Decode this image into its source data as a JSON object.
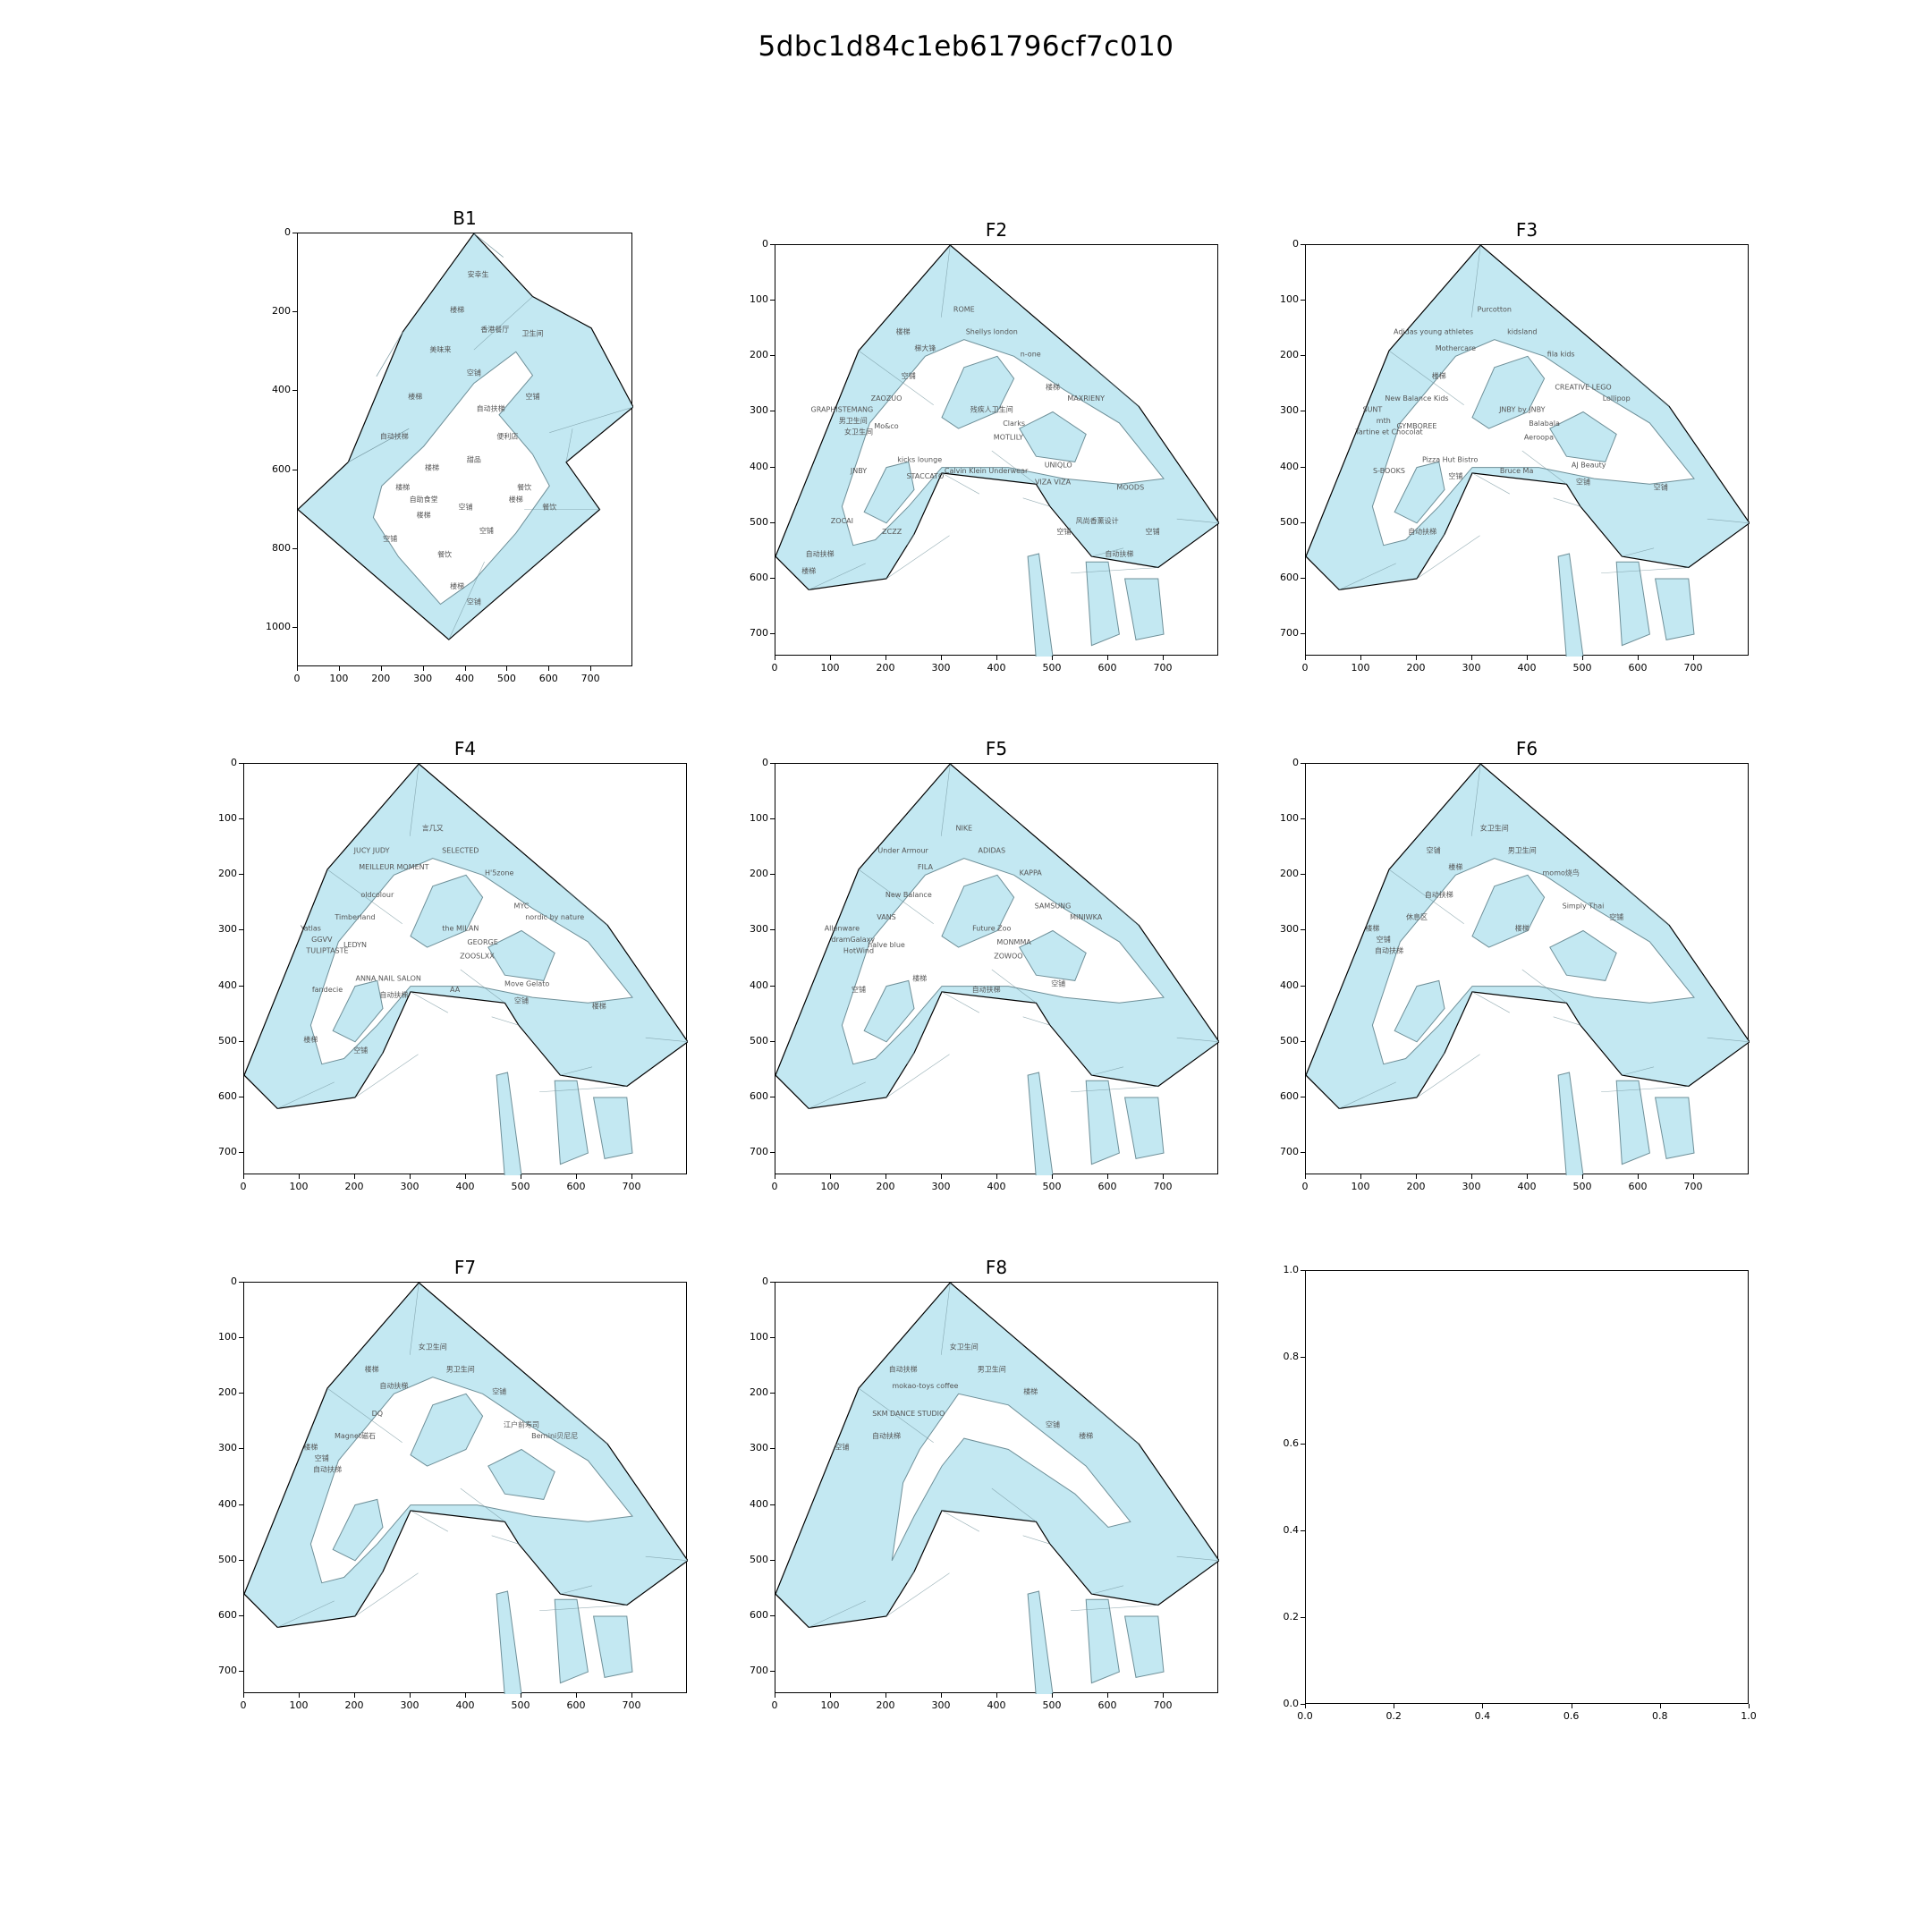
{
  "figure": {
    "title": "5dbc1d84c1eb61796cf7c010"
  },
  "colors": {
    "fill": "#c3e8f2",
    "edge": "#6e8f98",
    "outline": "#000000",
    "label": "#555555"
  },
  "panels": [
    {
      "name": "B1",
      "xticks": [
        "0",
        "100",
        "200",
        "300",
        "400",
        "500",
        "600",
        "700"
      ],
      "yticks": [
        "0",
        "200",
        "400",
        "600",
        "800",
        "1000"
      ],
      "labels": [
        "安幸生",
        "楼梯",
        "美味来",
        "香港餐厅",
        "卫生间",
        "空铺",
        "楼梯",
        "自动扶梯",
        "楼梯",
        "甜品",
        "便利店",
        "餐饮",
        "空铺",
        "楼梯",
        "空铺",
        "餐饮",
        "空铺",
        "楼梯",
        "楼梯",
        "餐饮",
        "自动扶梯",
        "空铺",
        "自助食堂",
        "楼梯",
        "空铺"
      ]
    },
    {
      "name": "F2",
      "xticks": [
        "0",
        "100",
        "200",
        "300",
        "400",
        "500",
        "600",
        "700"
      ],
      "yticks": [
        "0",
        "100",
        "200",
        "300",
        "400",
        "500",
        "600",
        "700"
      ],
      "labels": [
        "ROME",
        "Shellys london",
        "n-one",
        "楼梯",
        "梯大锋",
        "空铺",
        "楼梯",
        "MAXRIENY",
        "ZAOZUO",
        "GRAPHISTEMANG",
        "男卫生间",
        "女卫生间",
        "残疾人卫生间",
        "Mo&co",
        "Clarks",
        "MOTLILY",
        "JNBY",
        "kicks lounge",
        "Calvin Klein Underwear",
        "UNIQLO",
        "VIZA VIZA",
        "MOODS",
        "STACCATO",
        "ZCZZ",
        "ZOCAI",
        "自动扶梯",
        "楼梯",
        "空铺",
        "风尚香薰设计",
        "空铺",
        "自动扶梯"
      ]
    },
    {
      "name": "F3",
      "xticks": [
        "0",
        "100",
        "200",
        "300",
        "400",
        "500",
        "600",
        "700"
      ],
      "yticks": [
        "0",
        "100",
        "200",
        "300",
        "400",
        "500",
        "600",
        "700"
      ],
      "labels": [
        "Purcotton",
        "kidsland",
        "fila kids",
        "Adidas young athletes",
        "Mothercare",
        "楼梯",
        "CREATIVE LEGO",
        "Lollipop",
        "New Balance Kids",
        "SUNT",
        "mth",
        "Tartine et Chocolat",
        "JNBY by JNBY",
        "GYMBOREE",
        "Balabala",
        "Aeroopa",
        "S-BOOKS",
        "Pizza Hut Bistro",
        "Bruce Ma",
        "AJ Beauty",
        "空铺",
        "空铺",
        "空铺",
        "自动扶梯"
      ]
    },
    {
      "name": "F4",
      "xticks": [
        "0",
        "100",
        "200",
        "300",
        "400",
        "500",
        "600",
        "700"
      ],
      "yticks": [
        "0",
        "100",
        "200",
        "300",
        "400",
        "500",
        "600",
        "700"
      ],
      "labels": [
        "言几又",
        "SELECTED",
        "H'5zone",
        "JUCY JUDY",
        "MEILLEUR MOMENT",
        "oldcolour",
        "MYC",
        "nordic by nature",
        "Timberland",
        "Yatlas",
        "GGVV",
        "TULIPTASTE",
        "the MILAN",
        "LEDYN",
        "GEORGE",
        "ZOOSLXX",
        "fandecie",
        "ANNA NAIL SALON",
        "AA",
        "Move Gelato",
        "空铺",
        "楼梯",
        "自动扶梯",
        "空铺",
        "楼梯"
      ]
    },
    {
      "name": "F5",
      "xticks": [
        "0",
        "100",
        "200",
        "300",
        "400",
        "500",
        "600",
        "700"
      ],
      "yticks": [
        "0",
        "100",
        "200",
        "300",
        "400",
        "500",
        "600",
        "700"
      ],
      "labels": [
        "NIKE",
        "ADIDAS",
        "KAPPA",
        "Under Armour",
        "FILA",
        "New Balance",
        "SAMSUNG",
        "MINIWKA",
        "VANS",
        "Allenware",
        "dramGalaxy",
        "HotWind",
        "Future Zoo",
        "halve blue",
        "MONMMA",
        "ZOWOO",
        "空铺",
        "楼梯",
        "自动扶梯",
        "空铺"
      ]
    },
    {
      "name": "F6",
      "xticks": [
        "0",
        "100",
        "200",
        "300",
        "400",
        "500",
        "600",
        "700"
      ],
      "yticks": [
        "0",
        "100",
        "200",
        "300",
        "400",
        "500",
        "600",
        "700"
      ],
      "labels": [
        "女卫生间",
        "男卫生间",
        "momo烧鸟",
        "空铺",
        "楼梯",
        "自动扶梯",
        "Simply Thai",
        "空铺",
        "休息区",
        "楼梯",
        "空铺",
        "自动扶梯",
        "楼梯"
      ]
    },
    {
      "name": "F7",
      "xticks": [
        "0",
        "100",
        "200",
        "300",
        "400",
        "500",
        "600",
        "700"
      ],
      "yticks": [
        "0",
        "100",
        "200",
        "300",
        "400",
        "500",
        "600",
        "700"
      ],
      "labels": [
        "女卫生间",
        "男卫生间",
        "空铺",
        "楼梯",
        "自动扶梯",
        "DQ",
        "江户前寿司",
        "Bernini贝尼尼",
        "Magnet磁石",
        "楼梯",
        "空铺",
        "自动扶梯"
      ]
    },
    {
      "name": "F8",
      "xticks": [
        "0",
        "100",
        "200",
        "300",
        "400",
        "500",
        "600",
        "700"
      ],
      "yticks": [
        "0",
        "100",
        "200",
        "300",
        "400",
        "500",
        "600",
        "700"
      ],
      "labels": [
        "女卫生间",
        "男卫生间",
        "楼梯",
        "自动扶梯",
        "mokao-toys coffee",
        "SKM DANCE STUDIO",
        "空铺",
        "楼梯",
        "自动扶梯",
        "空铺"
      ]
    },
    {
      "name": "",
      "xticks": [
        "0.0",
        "0.2",
        "0.4",
        "0.6",
        "0.8",
        "1.0"
      ],
      "yticks": [
        "1.0",
        "0.8",
        "0.6",
        "0.4",
        "0.2",
        "0.0"
      ],
      "labels": []
    }
  ]
}
